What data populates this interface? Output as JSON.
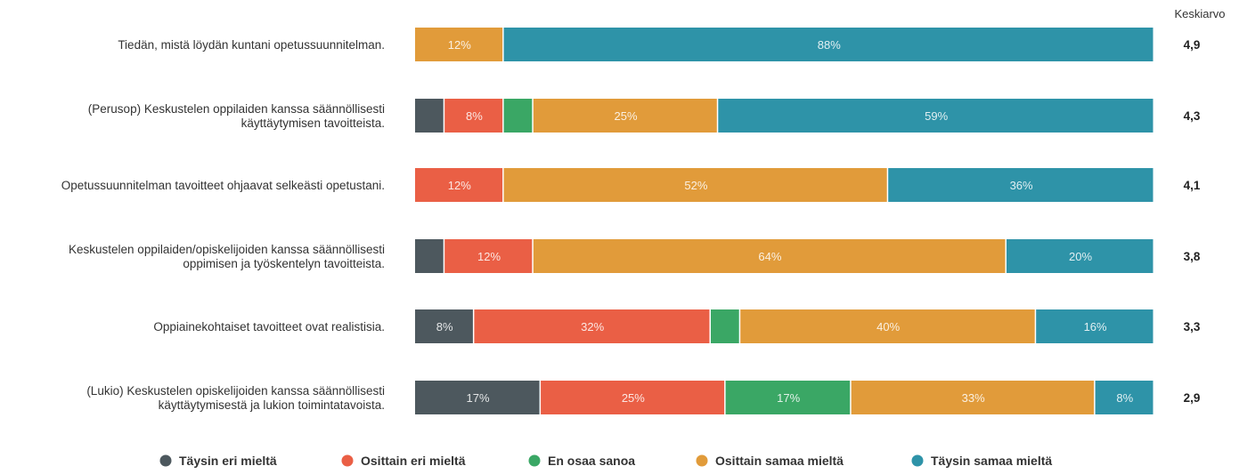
{
  "chart_data": {
    "type": "bar",
    "orientation": "horizontal",
    "stacked": true,
    "mean_header": "Keskiarvo",
    "categories": [
      [
        "Tiedän, mistä löydän kuntani opetussuunnitelman."
      ],
      [
        "(Perusop) Keskustelen oppilaiden kanssa säännöllisesti",
        "käyttäytymisen tavoitteista."
      ],
      [
        "Opetussuunnitelman tavoitteet ohjaavat selkeästi opetustani."
      ],
      [
        "Keskustelen oppilaiden/opiskelijoiden kanssa säännöllisesti",
        "oppimisen ja työskentelyn tavoitteista."
      ],
      [
        "Oppiainekohtaiset tavoitteet ovat realistisia."
      ],
      [
        "(Lukio) Keskustelen opiskelijoiden kanssa säännöllisesti",
        "käyttäytymisestä ja lukion toimintatavoista."
      ]
    ],
    "means": [
      "4,9",
      "4,3",
      "4,1",
      "3,8",
      "3,3",
      "2,9"
    ],
    "series": [
      {
        "name": "Täysin eri mieltä",
        "color": "#4d585e",
        "values": [
          0,
          4,
          0,
          4,
          8,
          17
        ],
        "labels": [
          "",
          "",
          "",
          "",
          "8%",
          "17%"
        ]
      },
      {
        "name": "Osittain eri mieltä",
        "color": "#ea5f45",
        "values": [
          0,
          8,
          12,
          12,
          32,
          25
        ],
        "labels": [
          "",
          "8%",
          "12%",
          "12%",
          "32%",
          "25%"
        ]
      },
      {
        "name": "En osaa sanoa",
        "color": "#3aa765",
        "values": [
          0,
          4,
          0,
          0,
          4,
          17
        ],
        "labels": [
          "",
          "",
          "",
          "",
          "",
          "17%"
        ]
      },
      {
        "name": "Osittain samaa mieltä",
        "color": "#e19b3a",
        "values": [
          12,
          25,
          52,
          64,
          40,
          33
        ],
        "labels": [
          "12%",
          "25%",
          "52%",
          "64%",
          "40%",
          "33%"
        ]
      },
      {
        "name": "Täysin samaa mieltä",
        "color": "#2e93a8",
        "values": [
          88,
          59,
          36,
          20,
          16,
          8
        ],
        "labels": [
          "88%",
          "59%",
          "36%",
          "20%",
          "16%",
          "8%"
        ]
      }
    ],
    "xlim": [
      0,
      100
    ],
    "legend_position": "bottom"
  }
}
